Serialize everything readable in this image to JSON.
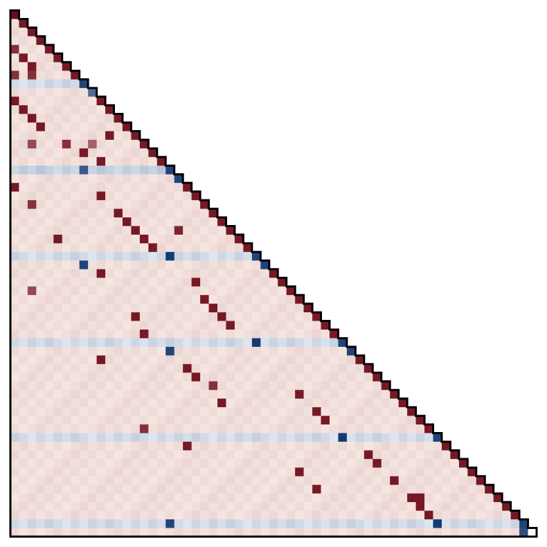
{
  "chart_data": {
    "type": "heatmap",
    "shape": "lower-triangular",
    "n": 61,
    "title": "",
    "xlabel": "",
    "ylabel": "",
    "colormap": {
      "negative": [
        "#f7fbff",
        "#08306b"
      ],
      "zero": "#ffffff",
      "positive": [
        "#fff5f0",
        "#67000d"
      ]
    },
    "outline_color": "#000000",
    "base_level_by_band": [
      0.1,
      0.1,
      0.1,
      0.1,
      0.1,
      0.1,
      0.1,
      0.1,
      -0.15,
      0.1,
      0.1,
      0.1,
      0.1,
      0.1,
      0.1,
      0.1,
      0.1,
      0.1,
      -0.2,
      0.1,
      0.1,
      0.1,
      0.1,
      0.1,
      0.1,
      0.1,
      0.1,
      0.1,
      -0.15,
      0.1,
      0.1,
      0.1,
      0.1,
      0.1,
      0.1,
      0.1,
      0.1,
      0.1,
      -0.15,
      0.1,
      0.1,
      0.1,
      0.1,
      0.1,
      0.1,
      0.1,
      0.1,
      0.1,
      0.1,
      -0.15,
      0.1,
      0.1,
      0.1,
      0.1,
      0.1,
      0.1,
      0.1,
      0.1,
      0.1,
      -0.15,
      0.1
    ],
    "notable_cells": [
      {
        "row": 0,
        "col": 0,
        "value": 0.95
      },
      {
        "row": 1,
        "col": 1,
        "value": 0.9
      },
      {
        "row": 2,
        "col": 2,
        "value": 0.9
      },
      {
        "row": 3,
        "col": 3,
        "value": 0.9
      },
      {
        "row": 4,
        "col": 0,
        "value": 0.8
      },
      {
        "row": 4,
        "col": 4,
        "value": 0.9
      },
      {
        "row": 5,
        "col": 1,
        "value": 0.9
      },
      {
        "row": 5,
        "col": 5,
        "value": 0.9
      },
      {
        "row": 6,
        "col": 2,
        "value": 0.9
      },
      {
        "row": 6,
        "col": 6,
        "value": 0.9
      },
      {
        "row": 7,
        "col": 0,
        "value": 0.8
      },
      {
        "row": 7,
        "col": 2,
        "value": 0.8
      },
      {
        "row": 7,
        "col": 7,
        "value": 0.9
      },
      {
        "row": 8,
        "col": 8,
        "value": -0.9
      },
      {
        "row": 9,
        "col": 9,
        "value": -0.7
      },
      {
        "row": 10,
        "col": 0,
        "value": 0.9
      },
      {
        "row": 10,
        "col": 10,
        "value": 0.9
      },
      {
        "row": 11,
        "col": 1,
        "value": 0.9
      },
      {
        "row": 11,
        "col": 11,
        "value": 0.9
      },
      {
        "row": 12,
        "col": 2,
        "value": 0.9
      },
      {
        "row": 12,
        "col": 12,
        "value": 0.9
      },
      {
        "row": 13,
        "col": 3,
        "value": 0.9
      },
      {
        "row": 13,
        "col": 13,
        "value": 0.9
      },
      {
        "row": 14,
        "col": 11,
        "value": 0.9
      },
      {
        "row": 14,
        "col": 14,
        "value": 0.9
      },
      {
        "row": 15,
        "col": 2,
        "value": 0.7
      },
      {
        "row": 15,
        "col": 6,
        "value": 0.8
      },
      {
        "row": 15,
        "col": 9,
        "value": 0.6
      },
      {
        "row": 15,
        "col": 15,
        "value": 0.9
      },
      {
        "row": 16,
        "col": 8,
        "value": 0.9
      },
      {
        "row": 16,
        "col": 16,
        "value": 0.9
      },
      {
        "row": 17,
        "col": 10,
        "value": 0.9
      },
      {
        "row": 17,
        "col": 17,
        "value": 0.9
      },
      {
        "row": 18,
        "col": 8,
        "value": -0.8
      },
      {
        "row": 18,
        "col": 18,
        "value": -0.9
      },
      {
        "row": 19,
        "col": 19,
        "value": -0.9
      },
      {
        "row": 20,
        "col": 0,
        "value": 0.9
      },
      {
        "row": 20,
        "col": 20,
        "value": 0.9
      },
      {
        "row": 21,
        "col": 10,
        "value": 0.9
      },
      {
        "row": 21,
        "col": 21,
        "value": 0.9
      },
      {
        "row": 22,
        "col": 2,
        "value": 0.8
      },
      {
        "row": 22,
        "col": 22,
        "value": 0.9
      },
      {
        "row": 23,
        "col": 12,
        "value": 0.9
      },
      {
        "row": 23,
        "col": 23,
        "value": 0.9
      },
      {
        "row": 24,
        "col": 13,
        "value": 0.9
      },
      {
        "row": 24,
        "col": 24,
        "value": 0.9
      },
      {
        "row": 25,
        "col": 14,
        "value": 0.9
      },
      {
        "row": 25,
        "col": 19,
        "value": 0.85
      },
      {
        "row": 25,
        "col": 25,
        "value": 0.9
      },
      {
        "row": 26,
        "col": 5,
        "value": 0.9
      },
      {
        "row": 26,
        "col": 15,
        "value": 0.9
      },
      {
        "row": 26,
        "col": 26,
        "value": 0.9
      },
      {
        "row": 27,
        "col": 16,
        "value": 0.9
      },
      {
        "row": 27,
        "col": 27,
        "value": 0.9
      },
      {
        "row": 28,
        "col": 18,
        "value": -0.95
      },
      {
        "row": 28,
        "col": 28,
        "value": -0.9
      },
      {
        "row": 29,
        "col": 8,
        "value": -0.9
      },
      {
        "row": 29,
        "col": 29,
        "value": -0.9
      },
      {
        "row": 30,
        "col": 10,
        "value": 0.9
      },
      {
        "row": 30,
        "col": 30,
        "value": 0.9
      },
      {
        "row": 31,
        "col": 21,
        "value": 0.9
      },
      {
        "row": 31,
        "col": 31,
        "value": 0.9
      },
      {
        "row": 32,
        "col": 2,
        "value": 0.7
      },
      {
        "row": 32,
        "col": 32,
        "value": 0.9
      },
      {
        "row": 33,
        "col": 22,
        "value": 0.9
      },
      {
        "row": 33,
        "col": 33,
        "value": 0.9
      },
      {
        "row": 34,
        "col": 23,
        "value": 0.9
      },
      {
        "row": 34,
        "col": 34,
        "value": 0.9
      },
      {
        "row": 35,
        "col": 14,
        "value": 0.9
      },
      {
        "row": 35,
        "col": 24,
        "value": 0.9
      },
      {
        "row": 35,
        "col": 35,
        "value": 0.9
      },
      {
        "row": 36,
        "col": 25,
        "value": 0.9
      },
      {
        "row": 36,
        "col": 36,
        "value": 0.9
      },
      {
        "row": 37,
        "col": 15,
        "value": 0.9
      },
      {
        "row": 37,
        "col": 37,
        "value": 0.9
      },
      {
        "row": 38,
        "col": 28,
        "value": -0.95
      },
      {
        "row": 38,
        "col": 38,
        "value": -0.9
      },
      {
        "row": 39,
        "col": 18,
        "value": -0.9
      },
      {
        "row": 39,
        "col": 39,
        "value": -0.9
      },
      {
        "row": 40,
        "col": 10,
        "value": 0.9
      },
      {
        "row": 40,
        "col": 40,
        "value": 0.9
      },
      {
        "row": 41,
        "col": 20,
        "value": 0.9
      },
      {
        "row": 41,
        "col": 41,
        "value": 0.9
      },
      {
        "row": 42,
        "col": 21,
        "value": 0.9
      },
      {
        "row": 42,
        "col": 42,
        "value": 0.9
      },
      {
        "row": 43,
        "col": 23,
        "value": 0.8
      },
      {
        "row": 43,
        "col": 43,
        "value": 0.9
      },
      {
        "row": 44,
        "col": 33,
        "value": 0.9
      },
      {
        "row": 44,
        "col": 44,
        "value": 0.9
      },
      {
        "row": 45,
        "col": 24,
        "value": 0.9
      },
      {
        "row": 45,
        "col": 45,
        "value": 0.9
      },
      {
        "row": 46,
        "col": 35,
        "value": 0.9
      },
      {
        "row": 46,
        "col": 46,
        "value": 0.9
      },
      {
        "row": 47,
        "col": 36,
        "value": 0.9
      },
      {
        "row": 47,
        "col": 47,
        "value": 0.9
      },
      {
        "row": 48,
        "col": 15,
        "value": 0.8
      },
      {
        "row": 48,
        "col": 48,
        "value": 0.9
      },
      {
        "row": 49,
        "col": 38,
        "value": -0.95
      },
      {
        "row": 49,
        "col": 49,
        "value": -0.9
      },
      {
        "row": 50,
        "col": 20,
        "value": 0.9
      },
      {
        "row": 50,
        "col": 50,
        "value": 0.9
      },
      {
        "row": 51,
        "col": 41,
        "value": 0.9
      },
      {
        "row": 51,
        "col": 51,
        "value": 0.9
      },
      {
        "row": 52,
        "col": 42,
        "value": 0.9
      },
      {
        "row": 52,
        "col": 52,
        "value": 0.9
      },
      {
        "row": 53,
        "col": 33,
        "value": 0.9
      },
      {
        "row": 53,
        "col": 53,
        "value": 0.9
      },
      {
        "row": 54,
        "col": 44,
        "value": 0.9
      },
      {
        "row": 54,
        "col": 54,
        "value": 0.9
      },
      {
        "row": 55,
        "col": 35,
        "value": 0.9
      },
      {
        "row": 55,
        "col": 55,
        "value": 0.9
      },
      {
        "row": 56,
        "col": 46,
        "value": 0.9
      },
      {
        "row": 56,
        "col": 47,
        "value": 0.9
      },
      {
        "row": 56,
        "col": 56,
        "value": 0.9
      },
      {
        "row": 57,
        "col": 47,
        "value": 0.9
      },
      {
        "row": 57,
        "col": 57,
        "value": 0.9
      },
      {
        "row": 58,
        "col": 48,
        "value": 0.9
      },
      {
        "row": 58,
        "col": 58,
        "value": 0.9
      },
      {
        "row": 59,
        "col": 18,
        "value": -0.9
      },
      {
        "row": 59,
        "col": 49,
        "value": -0.95
      },
      {
        "row": 59,
        "col": 59,
        "value": -0.9
      },
      {
        "row": 60,
        "col": 59,
        "value": -0.85
      },
      {
        "row": 60,
        "col": 60,
        "value": 0.0
      }
    ]
  }
}
